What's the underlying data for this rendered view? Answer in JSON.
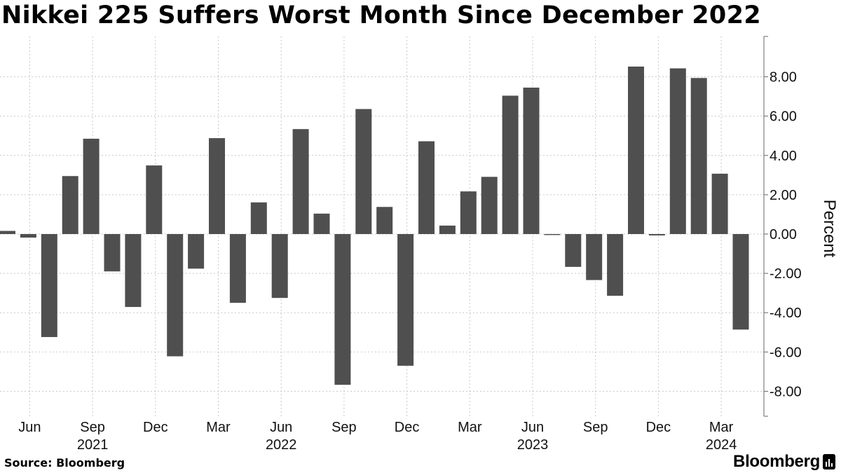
{
  "chart_data": {
    "type": "bar",
    "title": "Nikkei 225 Suffers Worst Month Since December 2022",
    "ylabel": "Percent",
    "xlabel": "",
    "ylim": [
      -9.2,
      10.0
    ],
    "y_ticks": [
      8,
      6,
      4,
      2,
      0,
      -2,
      -4,
      -6,
      -8
    ],
    "y_tick_labels": [
      "8.00",
      "6.00",
      "4.00",
      "2.00",
      "0.00",
      "-2.00",
      "-4.00",
      "-6.00",
      "-8.00"
    ],
    "grid": true,
    "series_color": "#4f4f4f",
    "categories": [
      "2021-05",
      "2021-06",
      "2021-07",
      "2021-08",
      "2021-09",
      "2021-10",
      "2021-11",
      "2021-12",
      "2022-01",
      "2022-02",
      "2022-03",
      "2022-04",
      "2022-05",
      "2022-06",
      "2022-07",
      "2022-08",
      "2022-09",
      "2022-10",
      "2022-11",
      "2022-12",
      "2023-01",
      "2023-02",
      "2023-03",
      "2023-04",
      "2023-05",
      "2023-06",
      "2023-07",
      "2023-08",
      "2023-09",
      "2023-10",
      "2023-11",
      "2023-12",
      "2024-01",
      "2024-02",
      "2024-03",
      "2024-04"
    ],
    "values": [
      0.16,
      -0.18,
      -5.24,
      2.95,
      4.85,
      -1.9,
      -3.71,
      3.49,
      -6.22,
      -1.76,
      4.88,
      -3.5,
      1.61,
      -3.25,
      5.34,
      1.04,
      -7.67,
      6.36,
      1.38,
      -6.7,
      4.72,
      0.43,
      2.17,
      2.91,
      7.04,
      7.45,
      -0.05,
      -1.67,
      -2.34,
      -3.14,
      8.52,
      -0.07,
      8.43,
      7.94,
      3.07,
      -4.86
    ],
    "x_tick_labels": [
      {
        "label": "Jun",
        "index": 1
      },
      {
        "label": "Sep",
        "index": 4
      },
      {
        "label": "Dec",
        "index": 7
      },
      {
        "label": "Mar",
        "index": 10
      },
      {
        "label": "Jun",
        "index": 13
      },
      {
        "label": "Sep",
        "index": 16
      },
      {
        "label": "Dec",
        "index": 19
      },
      {
        "label": "Mar",
        "index": 22
      },
      {
        "label": "Jun",
        "index": 25
      },
      {
        "label": "Sep",
        "index": 28
      },
      {
        "label": "Dec",
        "index": 31
      },
      {
        "label": "Mar",
        "index": 34
      }
    ],
    "year_labels": [
      {
        "label": "2021",
        "index": 4
      },
      {
        "label": "2022",
        "index": 13
      },
      {
        "label": "2023",
        "index": 25
      },
      {
        "label": "2024",
        "index": 34
      }
    ]
  },
  "source": "Source: Bloomberg",
  "brand": "Bloomberg"
}
